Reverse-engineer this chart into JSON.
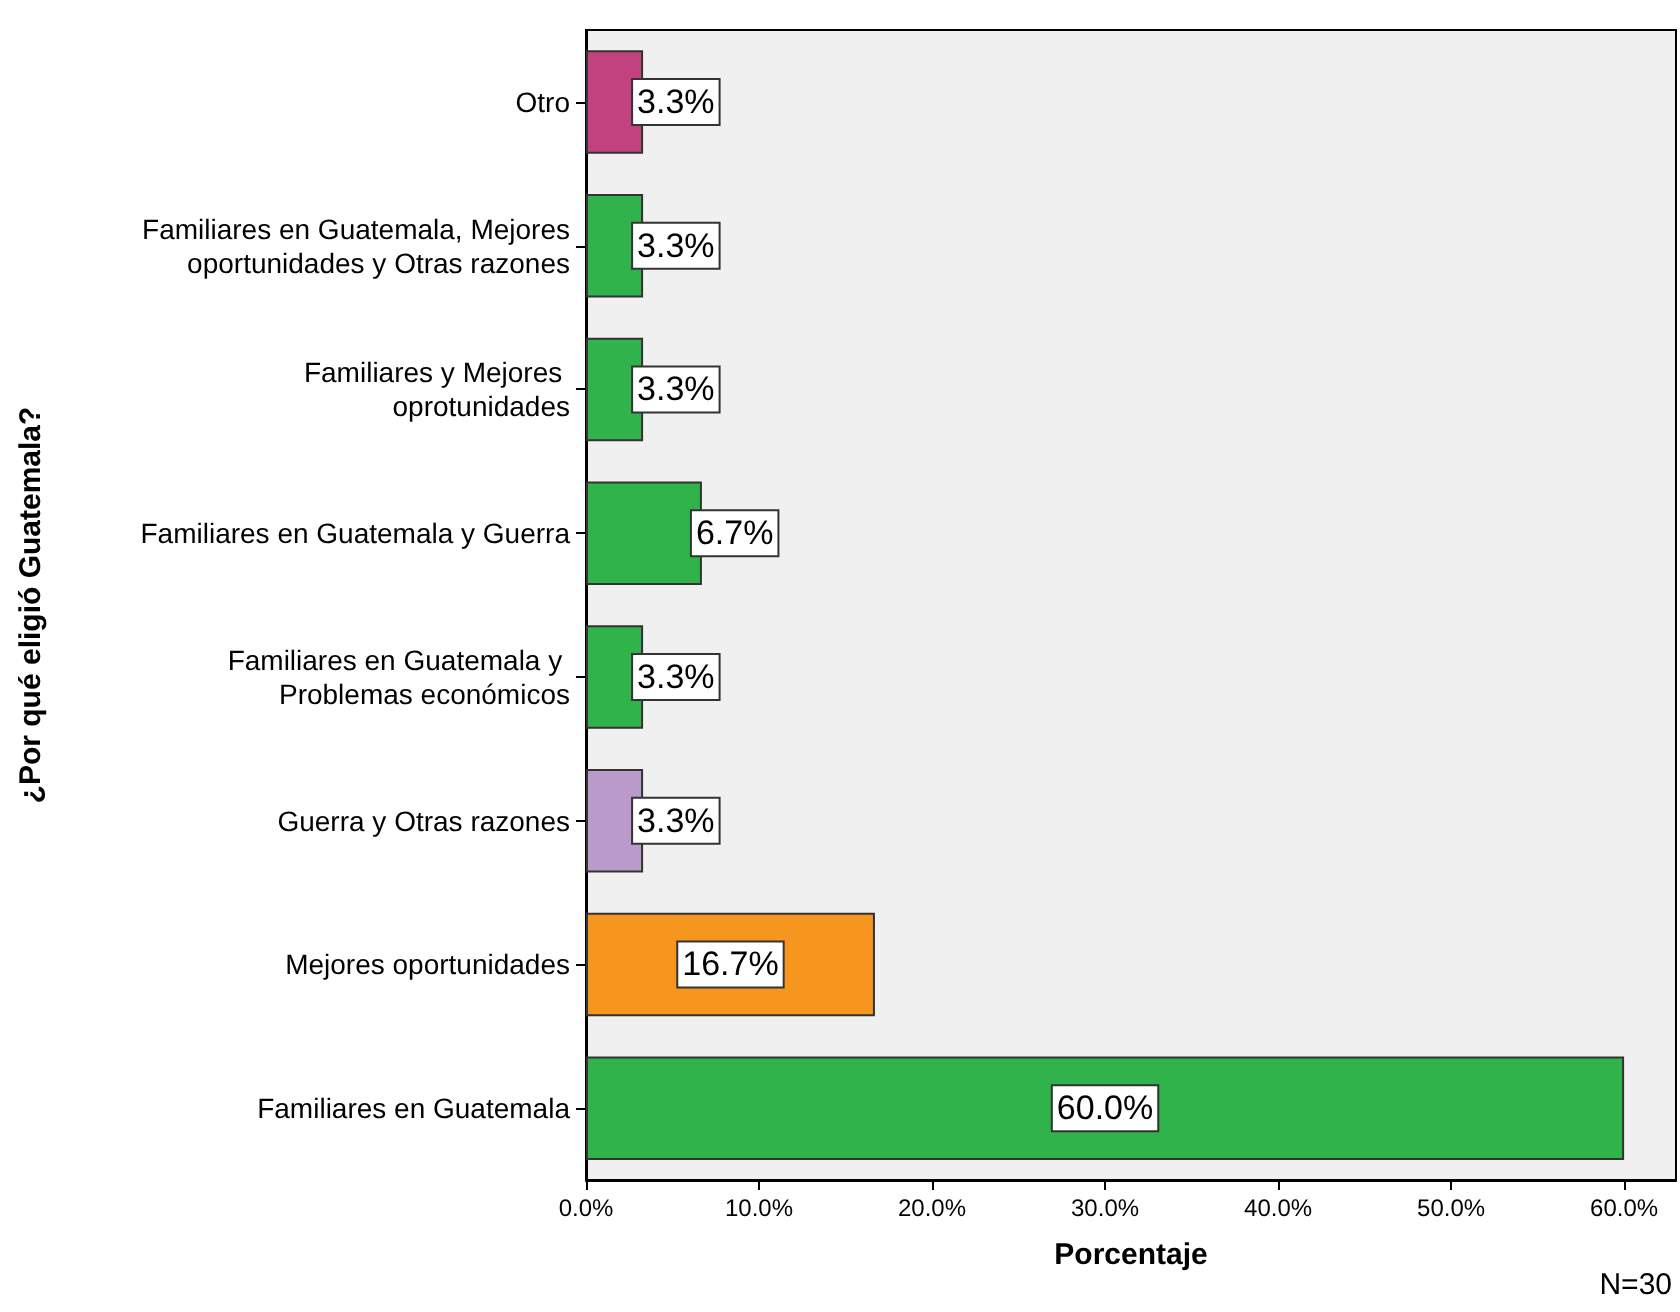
{
  "chart_data": {
    "type": "bar",
    "orientation": "horizontal",
    "xlabel": "Porcentaje",
    "ylabel": "¿Por qué eligió Guatemala?",
    "categories": [
      "Otro",
      "Familiares en Guatemala, Mejores oportunidades y Otras razones",
      "Familiares y Mejores oprotunidades",
      "Familiares en Guatemala y Guerra",
      "Familiares en Guatemala y Problemas económicos",
      "Guerra y Otras razones",
      "Mejores oportunidades",
      "Familiares en Guatemala"
    ],
    "values": [
      3.3,
      3.3,
      3.3,
      6.7,
      3.3,
      3.3,
      16.7,
      60.0
    ],
    "colors": [
      "#c2427f",
      "#2fb34a",
      "#2fb34a",
      "#2fb34a",
      "#2fb34a",
      "#b99acb",
      "#f7961e",
      "#2fb34a"
    ],
    "value_labels": [
      "3.3%",
      "3.3%",
      "3.3%",
      "6.7%",
      "3.3%",
      "3.3%",
      "16.7%",
      "60.0%"
    ],
    "xlim": [
      0,
      63
    ],
    "xticks": [
      {
        "value": 0,
        "label": "0.0%"
      },
      {
        "value": 10,
        "label": "10.0%"
      },
      {
        "value": 20,
        "label": "20.0%"
      },
      {
        "value": 30,
        "label": "30.0%"
      },
      {
        "value": 40,
        "label": "40.0%"
      },
      {
        "value": 50,
        "label": "50.0%"
      },
      {
        "value": 60,
        "label": "60.0%"
      }
    ],
    "grid": false,
    "annotations": [
      "N=30"
    ]
  }
}
